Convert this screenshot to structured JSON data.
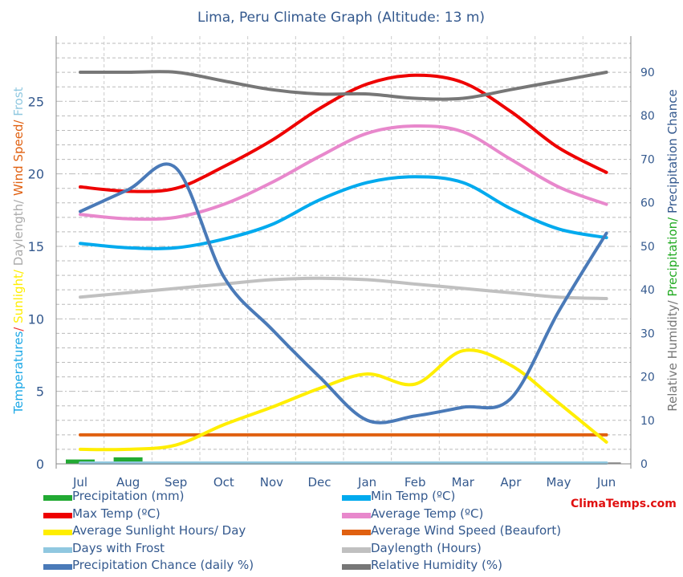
{
  "chart_data": {
    "type": "line",
    "title": "Lima, Peru Climate Graph (Altitude: 13 m)",
    "categories": [
      "Jul",
      "Aug",
      "Sep",
      "Oct",
      "Nov",
      "Dec",
      "Jan",
      "Feb",
      "Mar",
      "Apr",
      "May",
      "Jun"
    ],
    "left_axis": {
      "label_parts": [
        {
          "text": "Temperatures",
          "color": "#1aa7e6"
        },
        {
          "text": "/ ",
          "color": "#e33"
        },
        {
          "text": "Sunlight/ ",
          "color": "#ffee00"
        },
        {
          "text": "Daylength/ ",
          "color": "#aaaaaa"
        },
        {
          "text": "Wind Speed/ ",
          "color": "#e06010"
        },
        {
          "text": "Frost",
          "color": "#90c8e0"
        }
      ],
      "ticks": [
        0,
        5,
        10,
        15,
        20,
        25
      ],
      "range": [
        0,
        29.5
      ]
    },
    "right_axis": {
      "label_parts": [
        {
          "text": "Relative Humidity/ ",
          "color": "#777777"
        },
        {
          "text": "Precipitation/ ",
          "color": "#22aa22"
        },
        {
          "text": "Precipitation Chance",
          "color": "#34598e"
        }
      ],
      "ticks": [
        0,
        10,
        20,
        30,
        40,
        50,
        60,
        70,
        80,
        90
      ],
      "range": [
        0,
        98.3
      ]
    },
    "bars": {
      "name": "Precipitation (mm)",
      "color": "#22aa33",
      "axis": "left",
      "values": [
        0.3,
        0.45,
        0.1,
        0,
        0,
        0,
        0.15,
        0.05,
        0.05,
        0,
        0,
        0.1
      ]
    },
    "series": [
      {
        "name": "Min Temp (ºC)",
        "color": "#00aaee",
        "axis": "left",
        "values": [
          15.2,
          14.9,
          14.9,
          15.5,
          16.5,
          18.2,
          19.4,
          19.8,
          19.4,
          17.6,
          16.2,
          15.6
        ]
      },
      {
        "name": "Max Temp (ºC)",
        "color": "#ee0000",
        "axis": "left",
        "values": [
          19.1,
          18.8,
          19.0,
          20.5,
          22.3,
          24.5,
          26.2,
          26.8,
          26.3,
          24.3,
          21.8,
          20.1
        ]
      },
      {
        "name": "Average Temp (ºC)",
        "color": "#e888cc",
        "axis": "left",
        "values": [
          17.2,
          16.9,
          17.0,
          17.9,
          19.4,
          21.2,
          22.8,
          23.3,
          22.9,
          21.0,
          19.1,
          17.9
        ]
      },
      {
        "name": "Average Sunlight Hours/ Day",
        "color": "#ffee00",
        "axis": "left",
        "values": [
          1.0,
          1.0,
          1.3,
          2.7,
          3.9,
          5.2,
          6.2,
          5.5,
          7.8,
          6.8,
          4.2,
          1.5
        ]
      },
      {
        "name": "Average Wind Speed (Beaufort)",
        "color": "#e06010",
        "axis": "left",
        "values": [
          2,
          2,
          2,
          2,
          2,
          2,
          2,
          2,
          2,
          2,
          2,
          2
        ]
      },
      {
        "name": "Days with Frost",
        "color": "#90c8e0",
        "axis": "left",
        "values": [
          0,
          0,
          0,
          0,
          0,
          0,
          0,
          0,
          0,
          0,
          0,
          0
        ]
      },
      {
        "name": "Daylength (Hours)",
        "color": "#c0c0c0",
        "axis": "left",
        "values": [
          11.5,
          11.8,
          12.1,
          12.4,
          12.7,
          12.8,
          12.7,
          12.4,
          12.1,
          11.8,
          11.5,
          11.4
        ]
      },
      {
        "name": "Precipitation Chance (daily %)",
        "color": "#4a7ab8",
        "axis": "right",
        "values": [
          58,
          63,
          68,
          43,
          31,
          20,
          10,
          11,
          13,
          15,
          35,
          53
        ]
      },
      {
        "name": "Relative Humidity (%)",
        "color": "#777777",
        "axis": "right",
        "values": [
          90,
          90,
          90,
          88,
          86,
          85,
          85,
          84,
          84,
          86,
          88,
          90
        ]
      }
    ],
    "legend_placement": "bottom",
    "grid": true
  },
  "brand": "ClimaTemps.com"
}
